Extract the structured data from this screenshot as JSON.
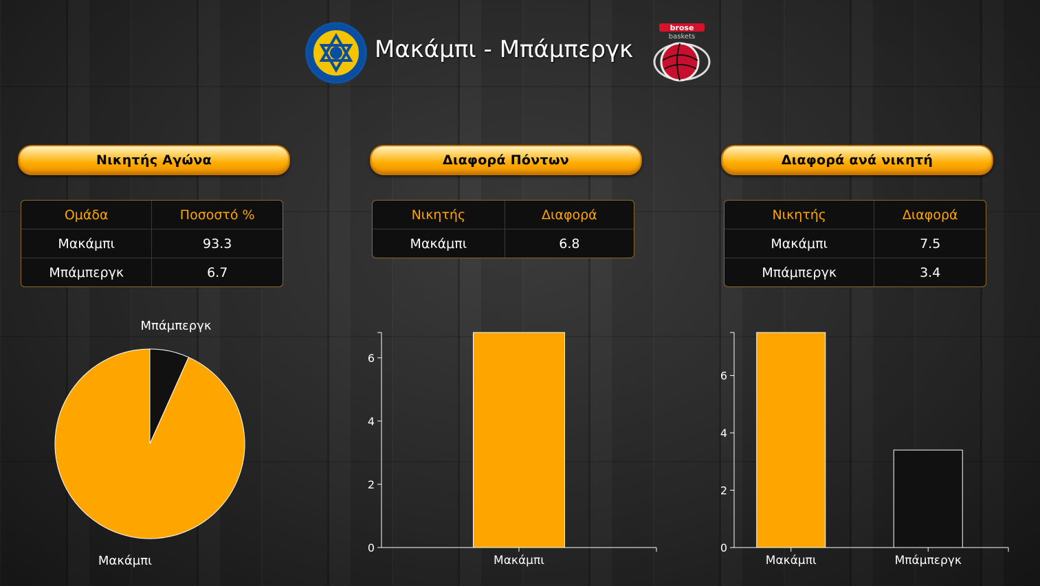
{
  "header": {
    "title": "Μακάμπι - Μπάμπεργκ",
    "left_logo": "maccabi-logo",
    "right_logo": "brose-baskets-logo",
    "right_logo_text": [
      "brose",
      "baskets"
    ]
  },
  "colors": {
    "orange": "#ffa500",
    "dark_bar": "#111111",
    "background": "#262626"
  },
  "panels": [
    {
      "title": "Νικητής Αγώνα",
      "table": {
        "headers": [
          "Ομάδα",
          "Ποσοστό %"
        ],
        "rows": [
          [
            "Μακάμπι",
            "93.3"
          ],
          [
            "Μπάμπεργκ",
            "6.7"
          ]
        ]
      }
    },
    {
      "title": "Διαφορά Πόντων",
      "table": {
        "headers": [
          "Νικητής",
          "Διαφορά"
        ],
        "rows": [
          [
            "Μακάμπι",
            "6.8"
          ]
        ]
      }
    },
    {
      "title": "Διαφορά ανά νικητή",
      "table": {
        "headers": [
          "Νικητής",
          "Διαφορά"
        ],
        "rows": [
          [
            "Μακάμπι",
            "7.5"
          ],
          [
            "Μπάμπεργκ",
            "3.4"
          ]
        ]
      }
    }
  ],
  "chart_data": [
    {
      "type": "pie",
      "labels": [
        "Μακάμπι",
        "Μπάμπεργκ"
      ],
      "values": [
        93.3,
        6.7
      ],
      "colors": [
        "#ffa500",
        "#111111"
      ],
      "title": ""
    },
    {
      "type": "bar",
      "categories": [
        "Μακάμπι"
      ],
      "values": [
        6.8
      ],
      "colors": [
        "#ffa500"
      ],
      "ylim": [
        0,
        6.8
      ],
      "yticks": [
        0,
        2,
        4,
        6
      ],
      "title": "",
      "xlabel": "",
      "ylabel": ""
    },
    {
      "type": "bar",
      "categories": [
        "Μακάμπι",
        "Μπάμπεργκ"
      ],
      "values": [
        7.5,
        3.4
      ],
      "colors": [
        "#ffa500",
        "#111111"
      ],
      "ylim": [
        0,
        7.5
      ],
      "yticks": [
        0,
        2,
        4,
        6
      ],
      "title": "",
      "xlabel": "",
      "ylabel": ""
    }
  ]
}
